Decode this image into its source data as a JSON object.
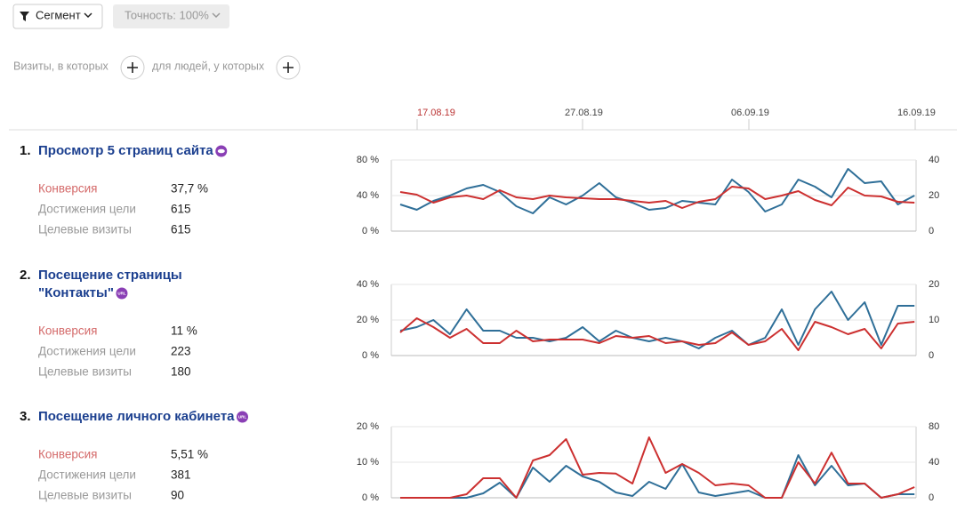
{
  "toolbar": {
    "segment": "Сегмент",
    "accuracy": "Точность: 100%"
  },
  "filter": {
    "visits": "Визиты, в которых",
    "people": "для людей, у которых"
  },
  "timeline": [
    "17.08.19",
    "27.08.19",
    "06.09.19",
    "16.09.19"
  ],
  "goals": [
    {
      "number": "1.",
      "title": [
        "Просмотр 5 страниц сайта"
      ],
      "icon": "eye",
      "stats": [
        {
          "label": "Конверсия",
          "value": "37,7 %"
        },
        {
          "label": "Достижения цели",
          "value": "615"
        },
        {
          "label": "Целевые визиты",
          "value": "615"
        }
      ]
    },
    {
      "number": "2.",
      "title": [
        "Посещение страницы",
        "\"Контакты\""
      ],
      "icon": "URL",
      "stats": [
        {
          "label": "Конверсия",
          "value": "11 %"
        },
        {
          "label": "Достижения цели",
          "value": "223"
        },
        {
          "label": "Целевые визиты",
          "value": "180"
        }
      ]
    },
    {
      "number": "3.",
      "title": [
        "Посещение личного кабинета"
      ],
      "icon": "URL",
      "stats": [
        {
          "label": "Конверсия",
          "value": "5,51 %"
        },
        {
          "label": "Достижения цели",
          "value": "381"
        },
        {
          "label": "Целевые визиты",
          "value": "90"
        }
      ]
    }
  ],
  "chart_data": [
    {
      "type": "line",
      "ylim": [
        0,
        80
      ],
      "yticks": [
        {
          "value": 0,
          "label": "0 %"
        },
        {
          "value": 40,
          "label": "40 %"
        },
        {
          "value": 80,
          "label": "80 %"
        }
      ],
      "y2lim": [
        0,
        40
      ],
      "y2ticks": [
        0,
        20,
        40
      ],
      "grid": true,
      "series": [
        {
          "color": "#2f6f98",
          "axis": "y2",
          "values": [
            15,
            12,
            17,
            20,
            24,
            26,
            22,
            14,
            10,
            19,
            15,
            20,
            27,
            19,
            16,
            12,
            13,
            17,
            16,
            15,
            29,
            22,
            11,
            15,
            29,
            25,
            19,
            35,
            27,
            28,
            15,
            20
          ]
        },
        {
          "color": "#cc3030",
          "values": [
            44,
            41,
            32,
            38,
            40,
            36,
            46,
            38,
            36,
            40,
            38,
            37,
            36,
            36,
            34,
            32,
            34,
            26,
            33,
            36,
            50,
            48,
            36,
            40,
            45,
            35,
            29,
            49,
            40,
            39,
            33,
            32
          ]
        }
      ]
    },
    {
      "type": "line",
      "ylim": [
        0,
        40
      ],
      "yticks": [
        {
          "value": 0,
          "label": "0 %"
        },
        {
          "value": 20,
          "label": "20 %"
        },
        {
          "value": 40,
          "label": "40 %"
        }
      ],
      "y2lim": [
        0,
        20
      ],
      "y2ticks": [
        0,
        10,
        20
      ],
      "grid": true,
      "series": [
        {
          "color": "#2f6f98",
          "axis": "y2",
          "values": [
            7,
            8,
            10,
            6,
            13,
            7,
            7,
            5,
            5,
            4,
            5,
            8,
            4,
            7,
            5,
            4,
            5,
            4,
            2,
            5,
            7,
            3,
            5,
            13,
            3,
            13,
            18,
            10,
            15,
            3,
            14,
            14
          ]
        },
        {
          "color": "#cc3030",
          "values": [
            13,
            21,
            16,
            10,
            15,
            7,
            7,
            14,
            8,
            9,
            9,
            9,
            7,
            11,
            10,
            11,
            7,
            8,
            6,
            7,
            13,
            6,
            8,
            15,
            3,
            19,
            16,
            12,
            15,
            4,
            18,
            19
          ]
        }
      ]
    },
    {
      "type": "line",
      "ylim": [
        0,
        20
      ],
      "yticks": [
        {
          "value": 0,
          "label": "0 %"
        },
        {
          "value": 10,
          "label": "10 %"
        },
        {
          "value": 20,
          "label": "20 %"
        }
      ],
      "y2lim": [
        0,
        80
      ],
      "y2ticks": [
        0,
        40,
        80
      ],
      "grid": true,
      "series": [
        {
          "color": "#2f6f98",
          "axis": "y2",
          "values": [
            0,
            0,
            0,
            0,
            0,
            5,
            17,
            0,
            34,
            18,
            36,
            24,
            18,
            6,
            2,
            18,
            10,
            38,
            6,
            2,
            5,
            8,
            0,
            0,
            48,
            14,
            36,
            14,
            16,
            0,
            4,
            4
          ]
        },
        {
          "color": "#cc3030",
          "values": [
            0,
            0,
            0,
            0,
            1,
            5.5,
            5.5,
            0,
            10.5,
            12,
            16.5,
            6.5,
            7,
            6.8,
            4,
            17,
            7,
            9.5,
            7,
            3.5,
            4,
            3.5,
            0,
            0,
            10,
            4,
            12.7,
            4,
            4,
            0,
            1,
            3
          ]
        }
      ]
    }
  ]
}
